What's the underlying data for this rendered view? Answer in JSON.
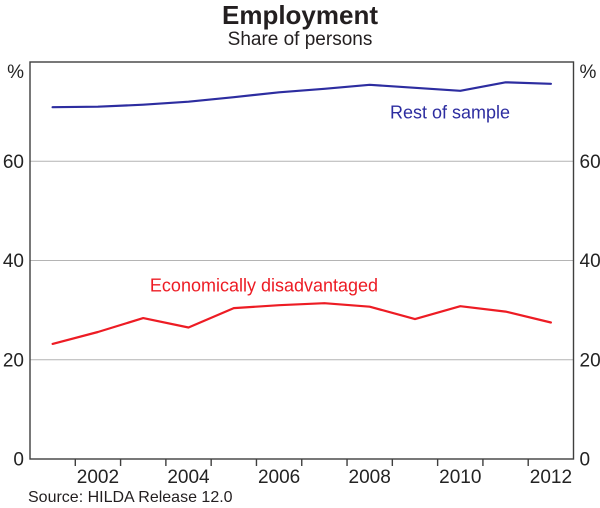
{
  "chart_data": {
    "type": "line",
    "title": "Employment",
    "subtitle": "Share of persons",
    "unit_label": "%",
    "x": [
      2001,
      2002,
      2003,
      2004,
      2005,
      2006,
      2007,
      2008,
      2009,
      2010,
      2011,
      2012
    ],
    "xtick_labels": [
      2002,
      2004,
      2006,
      2008,
      2010,
      2012
    ],
    "ylim": [
      0,
      80
    ],
    "yticks": [
      0,
      20,
      40,
      60
    ],
    "grid": "horizontal-interior",
    "legend_position": "inline-annotations",
    "series": [
      {
        "name": "Rest of sample",
        "color": "#2d2da0",
        "values": [
          70.9,
          71.0,
          71.4,
          72.0,
          72.9,
          73.9,
          74.6,
          75.4,
          74.8,
          74.2,
          75.9,
          75.6
        ]
      },
      {
        "name": "Economically disadvantaged",
        "color": "#ed1c24",
        "values": [
          23.2,
          25.6,
          28.4,
          26.5,
          30.4,
          31.0,
          31.4,
          30.7,
          28.2,
          30.8,
          29.7,
          27.5
        ]
      }
    ],
    "source": "Source: HILDA Release 12.0",
    "colors": {
      "grid": "#b4b4b4",
      "axis": "#3f3f3e",
      "text": "#232323"
    }
  }
}
